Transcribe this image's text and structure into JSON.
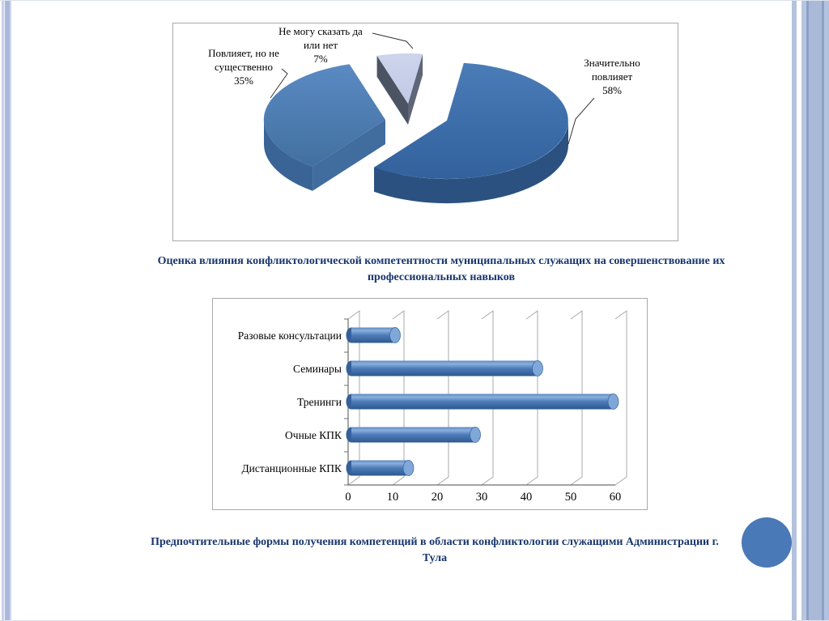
{
  "page": {
    "background": "#ffffff",
    "accent_circle_color": "#4a79b8",
    "stripe_color": "#a9b8db"
  },
  "chart_data": [
    {
      "type": "pie",
      "style": "3d-exploded",
      "title": "Оценка влияния конфликтологической компетентности муниципальных служащих на совершенствование их профессиональных навыков",
      "labels": [
        "Значительно повлияет",
        "Повлияет, но не существенно",
        "Не могу сказать да или нет"
      ],
      "values": [
        58,
        35,
        7
      ],
      "unit": "%",
      "colors": [
        "#3c6da9",
        "#4f81bd",
        "#c8d0e9"
      ],
      "legend": "none",
      "callouts": [
        {
          "lines": [
            "Значительно",
            "повлияет",
            "58%"
          ]
        },
        {
          "lines": [
            "Повлияет,  но не",
            "существенно",
            "35%"
          ]
        },
        {
          "lines": [
            "Не могу сказать да",
            "или нет",
            "7%"
          ]
        }
      ]
    },
    {
      "type": "bar",
      "style": "3d-cylinder",
      "orientation": "horizontal",
      "title": "Предпочтительные формы получения компетенций в области конфликтологии служащими Администрации г. Тула",
      "categories": [
        "Разовые консультации",
        "Семинары",
        "Тренинги",
        "Очные КПК",
        "Дистанционные КПК"
      ],
      "values": [
        10,
        42,
        59,
        28,
        13
      ],
      "xlabel": "",
      "ylabel": "",
      "xlim": [
        0,
        60
      ],
      "xticks": [
        0,
        10,
        20,
        30,
        40,
        50,
        60
      ],
      "grid": true,
      "bar_color": "#4f81bd"
    }
  ]
}
